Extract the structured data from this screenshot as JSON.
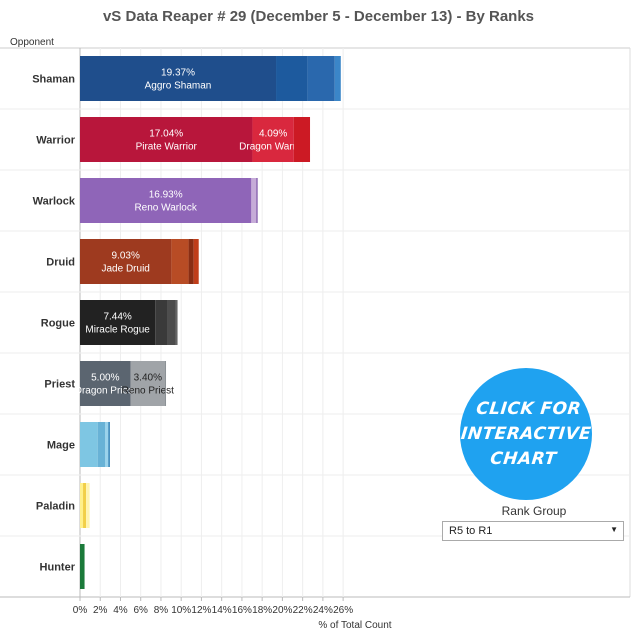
{
  "chart_data": {
    "type": "bar",
    "orientation": "horizontal",
    "stacked": true,
    "title": "vS Data Reaper # 29 (December 5 - December 13) - By Ranks",
    "ylabel": "Opponent",
    "xlabel": "% of Total Count",
    "xlim": [
      0,
      27
    ],
    "xticks": [
      "0%",
      "2%",
      "4%",
      "6%",
      "8%",
      "10%",
      "12%",
      "14%",
      "16%",
      "18%",
      "20%",
      "22%",
      "24%",
      "26%"
    ],
    "grid": true,
    "categories": [
      "Shaman",
      "Warrior",
      "Warlock",
      "Druid",
      "Rogue",
      "Priest",
      "Mage",
      "Paladin",
      "Hunter"
    ],
    "bars": [
      {
        "category": "Shaman",
        "segments": [
          {
            "value": 19.37,
            "color": "#1f4e8c",
            "label_pct": "19.37%",
            "label_name": "Aggro Shaman"
          },
          {
            "value": 3.1,
            "color": "#1d5a9e"
          },
          {
            "value": 2.7,
            "color": "#2a68ad"
          },
          {
            "value": 0.6,
            "color": "#3b86c8"
          }
        ]
      },
      {
        "category": "Warrior",
        "segments": [
          {
            "value": 17.04,
            "color": "#b8163b",
            "label_pct": "17.04%",
            "label_name": "Pirate Warrior"
          },
          {
            "value": 4.09,
            "color": "#d9283e",
            "label_pct": "4.09%",
            "label_name": "Dragon Warrior"
          },
          {
            "value": 1.6,
            "color": "#cc1a24"
          }
        ]
      },
      {
        "category": "Warlock",
        "segments": [
          {
            "value": 16.93,
            "color": "#8f65b8",
            "label_pct": "16.93%",
            "label_name": "Reno Warlock"
          },
          {
            "value": 0.5,
            "color": "#c6acd8"
          },
          {
            "value": 0.12,
            "color": "#7a4fa5"
          }
        ]
      },
      {
        "category": "Druid",
        "segments": [
          {
            "value": 9.03,
            "color": "#9e3a1f",
            "label_pct": "9.03%",
            "label_name": "Jade Druid"
          },
          {
            "value": 1.7,
            "color": "#b84c25"
          },
          {
            "value": 0.5,
            "color": "#8a2e14"
          },
          {
            "value": 0.5,
            "color": "#c03e1a"
          }
        ]
      },
      {
        "category": "Rogue",
        "segments": [
          {
            "value": 7.44,
            "color": "#222222",
            "label_pct": "7.44%",
            "label_name": "Miracle Rogue"
          },
          {
            "value": 1.2,
            "color": "#3a3a3a"
          },
          {
            "value": 0.8,
            "color": "#4d4d4d"
          },
          {
            "value": 0.2,
            "color": "#666666"
          }
        ]
      },
      {
        "category": "Priest",
        "segments": [
          {
            "value": 5.0,
            "color": "#5b6570",
            "label_pct": "5.00%",
            "label_name": "Dragon Priest"
          },
          {
            "value": 3.4,
            "color": "#a0a4a8",
            "label_pct": "3.40%",
            "label_name": "Reno Priest",
            "dark_text": true
          },
          {
            "value": 0.1,
            "color": "#8c9196"
          }
        ]
      },
      {
        "category": "Mage",
        "segments": [
          {
            "value": 1.75,
            "color": "#7ec6e3"
          },
          {
            "value": 0.75,
            "color": "#68b2d6"
          },
          {
            "value": 0.3,
            "color": "#9ad3ec"
          },
          {
            "value": 0.15,
            "color": "#2d7fb5"
          }
        ]
      },
      {
        "category": "Paladin",
        "segments": [
          {
            "value": 0.3,
            "color": "#fff08a"
          },
          {
            "value": 0.3,
            "color": "#f2cf47"
          },
          {
            "value": 0.35,
            "color": "#fff4b0"
          }
        ]
      },
      {
        "category": "Hunter",
        "segments": [
          {
            "value": 0.45,
            "color": "#1b7a3a"
          }
        ]
      }
    ]
  },
  "cta": {
    "label": "CLICK FOR INTERACTIVE CHART",
    "color": "#1fa2f0"
  },
  "filter": {
    "label": "Rank Group",
    "value": "R5 to R1"
  }
}
